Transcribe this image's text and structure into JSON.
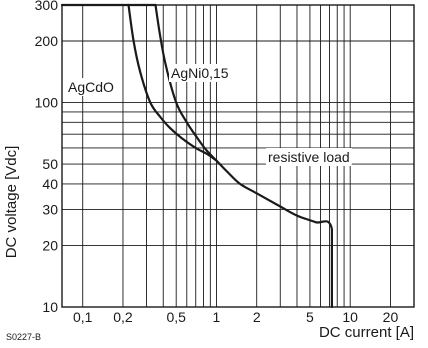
{
  "chart_data": {
    "type": "line",
    "title": "",
    "xlabel": "DC current [A]",
    "ylabel": "DC voltage [Vdc]",
    "x_scale": "log",
    "y_scale": "log",
    "xlim": [
      0.07,
      30
    ],
    "ylim": [
      10,
      300
    ],
    "grid": true,
    "x_ticks": [
      0.1,
      0.2,
      0.5,
      1,
      2,
      5,
      10,
      20
    ],
    "x_tick_labels": [
      "0,1",
      "0,2",
      "0,5",
      "1",
      "2",
      "5",
      "10",
      "20"
    ],
    "x_minor_grid": [
      0.3,
      0.4,
      0.6,
      0.7,
      0.8,
      0.9,
      3,
      4,
      6,
      7,
      8,
      9
    ],
    "y_ticks": [
      10,
      20,
      30,
      40,
      50,
      100,
      200,
      300
    ],
    "y_tick_labels": [
      "10",
      "20",
      "30",
      "40",
      "50",
      "100",
      "200",
      "300"
    ],
    "y_minor_grid": [
      60,
      70,
      80,
      90
    ],
    "series": [
      {
        "name": "AgCdO",
        "x": [
          0.22,
          0.24,
          0.27,
          0.32,
          0.38,
          0.45,
          0.55,
          0.7,
          0.85,
          1.0
        ],
        "y": [
          300,
          200,
          140,
          100,
          85,
          75,
          67,
          60,
          56,
          52
        ]
      },
      {
        "name": "AgNi0,15",
        "x": [
          0.35,
          0.38,
          0.42,
          0.5,
          0.6,
          0.72,
          0.85,
          1.0
        ],
        "y": [
          300,
          210,
          150,
          100,
          80,
          67,
          58,
          52
        ]
      },
      {
        "name": "resistive load",
        "x": [
          1.0,
          1.2,
          1.5,
          2.0,
          3.0,
          4.0,
          5.5,
          7.3,
          7.3
        ],
        "y": [
          52,
          46,
          40,
          36,
          31,
          28,
          26,
          24,
          10
        ]
      }
    ],
    "top_bound": {
      "y": 300,
      "x": [
        0.1,
        0.35
      ]
    },
    "figure_code": "S0227-B"
  }
}
